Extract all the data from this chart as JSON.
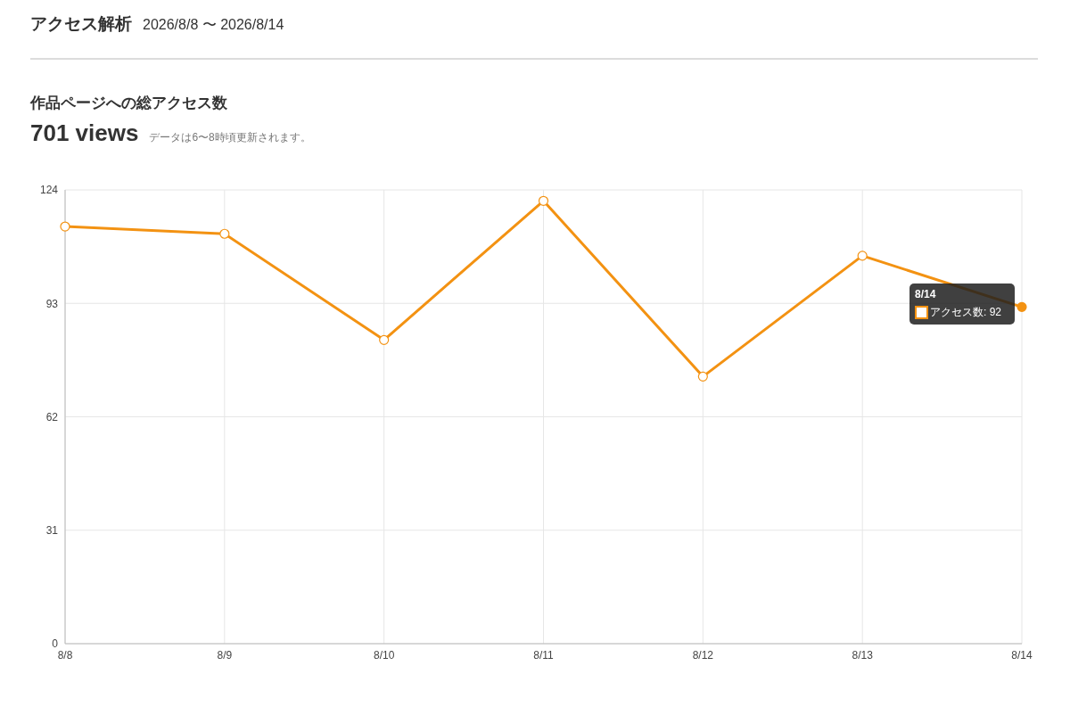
{
  "chart_data": {
    "type": "line",
    "title": "アクセス解析",
    "subtitle": "2026/8/8 〜 2026/8/14",
    "annotations": [
      "作品ページへの総アクセス数",
      "701 views",
      "データは6〜8時頃更新されます。",
      "8/14",
      {
        "text": "アクセス数: 92",
        "x": "8/14",
        "y": 92
      }
    ],
    "categories": [
      "8/8",
      "8/9",
      "8/10",
      "8/11",
      "8/12",
      "8/13",
      "8/14"
    ],
    "series": [
      {
        "color": "#f39212",
        "values": [
          114,
          112,
          83,
          121,
          73,
          106,
          92
        ]
      }
    ],
    "ylim": [
      0,
      124
    ],
    "yticks": [
      0,
      31,
      62,
      93,
      124
    ],
    "grid": true,
    "legend": false,
    "marker": "circle",
    "line_style": "solid"
  }
}
